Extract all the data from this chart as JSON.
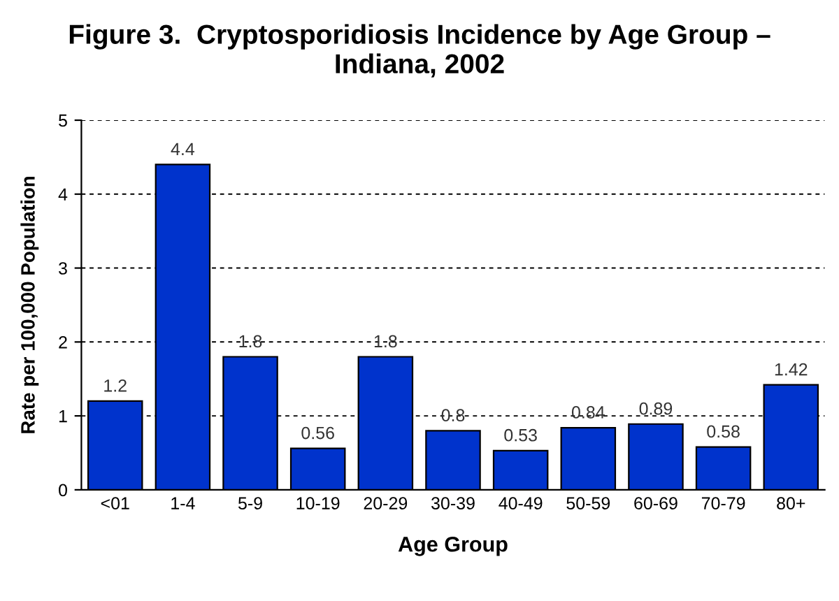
{
  "chart_data": {
    "type": "bar",
    "title": "Figure 3.  Cryptosporidiosis Incidence by Age Group –\nIndiana, 2002",
    "xlabel": "Age Group",
    "ylabel": "Rate per 100,000 Population",
    "categories": [
      "<01",
      "1-4",
      "5-9",
      "10-19",
      "20-29",
      "30-39",
      "40-49",
      "50-59",
      "60-69",
      "70-79",
      "80+"
    ],
    "values": [
      1.2,
      4.4,
      1.8,
      0.56,
      1.8,
      0.8,
      0.53,
      0.84,
      0.89,
      0.58,
      1.42
    ],
    "color": "#0033cc",
    "ylim": [
      0,
      5
    ],
    "yticks": [
      0,
      1,
      2,
      3,
      4,
      5
    ],
    "grid": "y",
    "data_labels": true
  }
}
